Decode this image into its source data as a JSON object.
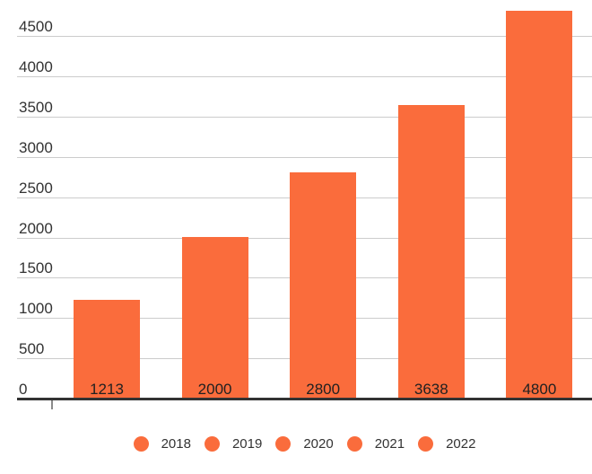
{
  "chart_data": {
    "type": "bar",
    "categories": [
      "2018",
      "2019",
      "2020",
      "2021",
      "2022"
    ],
    "values": [
      1213,
      2000,
      2800,
      3638,
      4800
    ],
    "title": "",
    "xlabel": "",
    "ylabel": "",
    "ylim": [
      0,
      4950
    ],
    "y_ticks": [
      0,
      500,
      1000,
      1500,
      2000,
      2500,
      3000,
      3500,
      4000,
      4500
    ],
    "grid": true,
    "legend_position": "bottom",
    "bar_value_labels_shown": true,
    "colors": {
      "bar": "#fa6c3c",
      "gridline": "#cccccc",
      "axis_line": "#333333",
      "axis_tick": "#8a8a8a",
      "axis_text": "#333333",
      "bar_label_text": "#212121",
      "legend_text": "#333333",
      "background": "#ffffff"
    }
  }
}
